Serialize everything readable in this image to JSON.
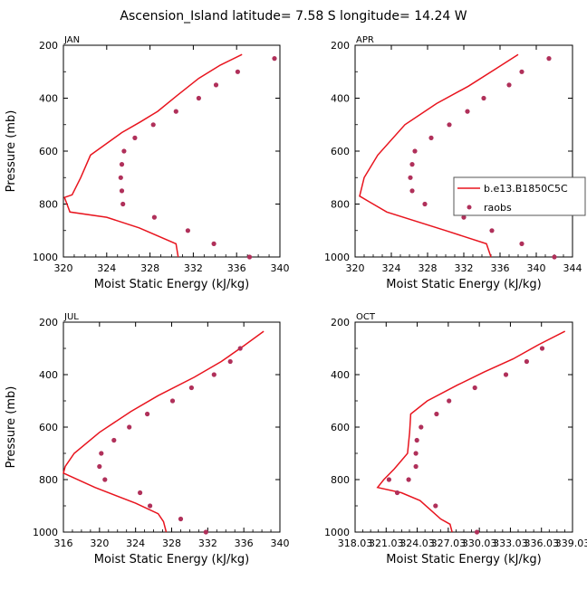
{
  "title": "Ascension_Island   latitude= 7.58 S longitude= 14.24 W",
  "colors": {
    "model": "#e8141e",
    "obs": "#b0305a",
    "axis": "#000000",
    "legend_border": "#555555"
  },
  "legend": {
    "placement": "right-middle of APR panel",
    "model_label": "b.e13.B1850C5C",
    "obs_label": "raobs"
  },
  "chart_data": [
    {
      "type": "line+scatter",
      "panel": "JAN",
      "label": "JAN",
      "xlabel": "Moist Static Energy (kJ/kg)",
      "ylabel": "Pressure (mb)",
      "xlim": [
        320,
        340
      ],
      "ylim": [
        1000,
        200
      ],
      "xticks": [
        "320",
        "324",
        "328",
        "332",
        "336",
        "340"
      ],
      "yticks": [
        "200",
        "400",
        "600",
        "800",
        "1000"
      ],
      "xtick_values": [
        320,
        324,
        328,
        332,
        336,
        340
      ],
      "ytick_values": [
        200,
        400,
        600,
        800,
        1000
      ],
      "series": [
        {
          "name": "b.e13.B1850C5C",
          "kind": "line",
          "mse": [
            336.5,
            334.5,
            332.5,
            330.5,
            328.7,
            327.1,
            325.4,
            322.5,
            321.6,
            320.8,
            320.1,
            320.6,
            324.0,
            327.0,
            330.4,
            330.6
          ],
          "pressure": [
            235,
            275,
            325,
            390,
            450,
            490,
            530,
            615,
            700,
            765,
            775,
            830,
            850,
            890,
            950,
            1000
          ]
        },
        {
          "name": "raobs",
          "kind": "scatter",
          "mse": [
            339.5,
            336.1,
            334.1,
            332.5,
            330.4,
            328.3,
            326.6,
            325.6,
            325.4,
            325.3,
            325.4,
            325.5,
            328.4,
            331.5,
            333.9,
            337.2
          ],
          "pressure": [
            250,
            300,
            350,
            400,
            450,
            500,
            550,
            600,
            650,
            700,
            750,
            800,
            850,
            900,
            950,
            1000
          ]
        }
      ]
    },
    {
      "type": "line+scatter",
      "panel": "APR",
      "label": "APR",
      "xlabel": "Moist Static Energy (kJ/kg)",
      "ylabel": "",
      "xlim": [
        320,
        344
      ],
      "ylim": [
        1000,
        200
      ],
      "xticks": [
        "320",
        "324",
        "328",
        "332",
        "336",
        "340",
        "344"
      ],
      "yticks": [
        "200",
        "400",
        "600",
        "800",
        "1000"
      ],
      "xtick_values": [
        320,
        324,
        328,
        332,
        336,
        340,
        344
      ],
      "ytick_values": [
        200,
        400,
        600,
        800,
        1000
      ],
      "series": [
        {
          "name": "b.e13.B1850C5C",
          "kind": "line",
          "mse": [
            338.0,
            335.5,
            332.5,
            329.0,
            325.5,
            322.5,
            321.0,
            320.5,
            321.5,
            323.5,
            330.0,
            334.5,
            335.0
          ],
          "pressure": [
            235,
            290,
            355,
            420,
            500,
            615,
            700,
            770,
            790,
            830,
            900,
            950,
            1000
          ]
        },
        {
          "name": "raobs",
          "kind": "scatter",
          "mse": [
            341.4,
            338.4,
            337.0,
            334.2,
            332.4,
            330.4,
            328.4,
            326.6,
            326.3,
            326.1,
            326.3,
            327.7,
            332.0,
            335.1,
            338.4,
            342.0
          ],
          "pressure": [
            250,
            300,
            350,
            400,
            450,
            500,
            550,
            600,
            650,
            700,
            750,
            800,
            850,
            900,
            950,
            1000
          ]
        }
      ]
    },
    {
      "type": "line+scatter",
      "panel": "JUL",
      "label": "JUL",
      "xlabel": "Moist Static Energy (kJ/kg)",
      "ylabel": "Pressure (mb)",
      "xlim": [
        316,
        340
      ],
      "ylim": [
        1000,
        200
      ],
      "xticks": [
        "316",
        "320",
        "324",
        "328",
        "332",
        "336",
        "340"
      ],
      "yticks": [
        "200",
        "400",
        "600",
        "800",
        "1000"
      ],
      "xtick_values": [
        316,
        320,
        324,
        328,
        332,
        336,
        340
      ],
      "ytick_values": [
        200,
        400,
        600,
        800,
        1000
      ],
      "series": [
        {
          "name": "b.e13.B1850C5C",
          "kind": "line",
          "mse": [
            338.2,
            336.0,
            333.5,
            330.5,
            326.5,
            323.5,
            320.0,
            317.2,
            316.2,
            316.0,
            319.5,
            324.0,
            326.5,
            327.1,
            327.4
          ],
          "pressure": [
            235,
            290,
            350,
            410,
            480,
            540,
            620,
            700,
            750,
            775,
            830,
            890,
            930,
            960,
            1000
          ]
        },
        {
          "name": "raobs",
          "kind": "scatter",
          "mse": [
            335.6,
            334.5,
            332.7,
            330.2,
            328.1,
            325.3,
            323.3,
            321.6,
            320.2,
            320.0,
            320.6,
            324.5,
            325.6,
            329.0,
            331.8
          ],
          "pressure": [
            300,
            350,
            400,
            450,
            500,
            550,
            600,
            650,
            700,
            750,
            800,
            850,
            900,
            950,
            1000
          ]
        }
      ]
    },
    {
      "type": "line+scatter",
      "panel": "OCT",
      "label": "OCT",
      "xlabel": "Moist Static Energy (kJ/kg)",
      "ylabel": "",
      "xlim": [
        318.03,
        339.03
      ],
      "ylim": [
        1000,
        200
      ],
      "xticks": [
        "318.03",
        "321.03",
        "324.03",
        "327.03",
        "330.03",
        "333.03",
        "336.03",
        "339.03"
      ],
      "yticks": [
        "200",
        "400",
        "600",
        "800",
        "1000"
      ],
      "xtick_values": [
        318.03,
        321.03,
        324.03,
        327.03,
        330.03,
        333.03,
        336.03,
        339.03
      ],
      "ytick_values": [
        200,
        400,
        600,
        800,
        1000
      ],
      "series": [
        {
          "name": "b.e13.B1850C5C",
          "kind": "line",
          "mse": [
            338.3,
            335.8,
            333.3,
            330.5,
            327.9,
            325.0,
            323.4,
            323.3,
            323.1,
            321.8,
            320.8,
            320.2,
            322.5,
            324.3,
            326.3,
            327.2,
            327.4
          ],
          "pressure": [
            235,
            285,
            340,
            390,
            440,
            500,
            550,
            620,
            700,
            760,
            800,
            830,
            850,
            880,
            950,
            970,
            1000
          ]
        },
        {
          "name": "raobs",
          "kind": "scatter",
          "mse": [
            336.1,
            334.6,
            332.6,
            329.6,
            327.1,
            325.9,
            324.4,
            324.0,
            323.9,
            323.9,
            323.2,
            321.3,
            322.1,
            325.8,
            329.8
          ],
          "pressure": [
            300,
            350,
            400,
            450,
            500,
            550,
            600,
            650,
            700,
            750,
            800,
            800,
            850,
            900,
            1000
          ]
        }
      ]
    }
  ]
}
